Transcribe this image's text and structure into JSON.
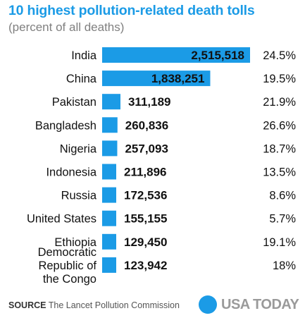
{
  "chart_data": {
    "type": "bar",
    "orientation": "horizontal",
    "title": "10 highest pollution-related death tolls",
    "subtitle": "(percent of all deaths)",
    "categories": [
      "India",
      "China",
      "Pakistan",
      "Bangladesh",
      "Nigeria",
      "Indonesia",
      "Russia",
      "United States",
      "Ethiopia",
      "Democratic Republic of the Congo"
    ],
    "category_lines": [
      [
        "India"
      ],
      [
        "China"
      ],
      [
        "Pakistan"
      ],
      [
        "Bangladesh"
      ],
      [
        "Nigeria"
      ],
      [
        "Indonesia"
      ],
      [
        "Russia"
      ],
      [
        "United States"
      ],
      [
        "Ethiopia"
      ],
      [
        "Democratic",
        "Republic of",
        "the Congo"
      ]
    ],
    "values": [
      2515518,
      1838251,
      311189,
      260836,
      257093,
      211896,
      172536,
      155155,
      129450,
      123942
    ],
    "value_labels": [
      "2,515,518",
      "1,838,251",
      "311,189",
      "260,836",
      "257,093",
      "211,896",
      "172,536",
      "155,155",
      "129,450",
      "123,942"
    ],
    "percent_labels": [
      "24.5%",
      "19.5%",
      "21.9%",
      "26.6%",
      "18.7%",
      "13.5%",
      "8.6%",
      "5.7%",
      "19.1%",
      "18%"
    ],
    "xlim": [
      0,
      2515518
    ],
    "grid": false,
    "legend": "none",
    "bar_color": "#1b9be6"
  },
  "footer": {
    "source_label": "SOURCE",
    "source_text": "The Lancet Pollution Commission",
    "logo_text": "USA TODAY"
  },
  "colors": {
    "accent": "#1b9be6",
    "subtitle": "#808080",
    "logo_text": "#9a9a9a"
  }
}
